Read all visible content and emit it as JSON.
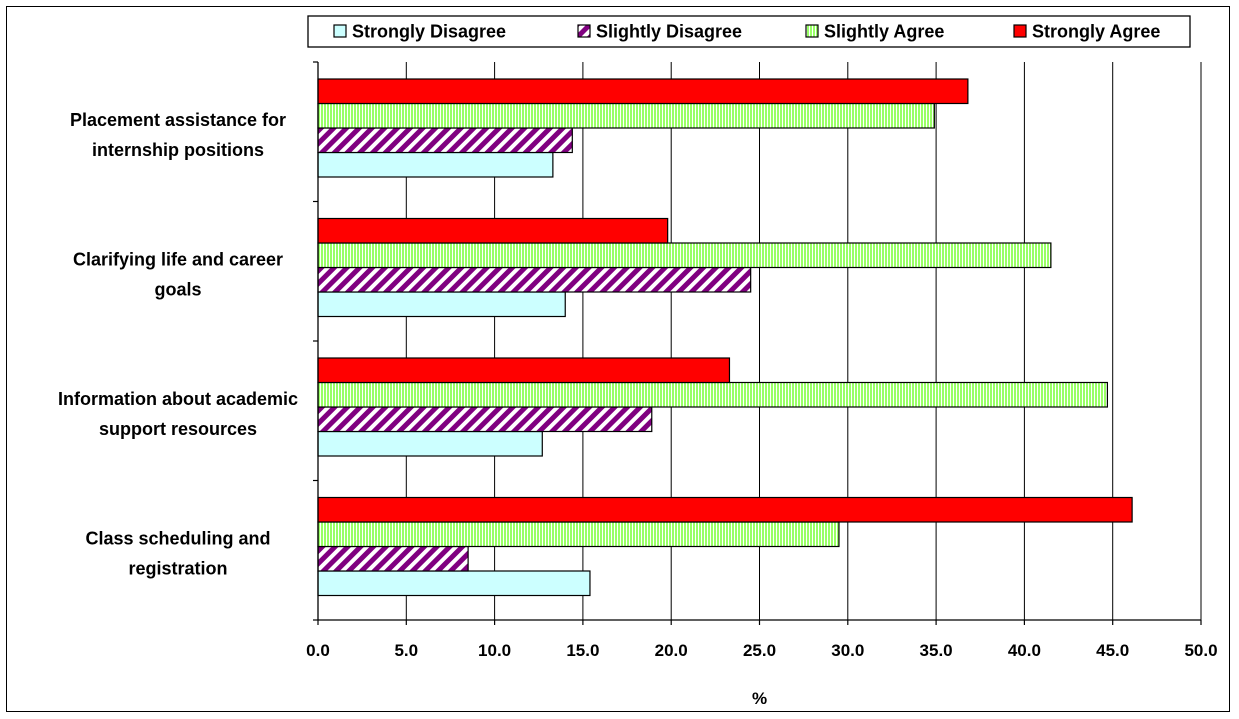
{
  "chart_data": {
    "type": "bar",
    "orientation": "horizontal",
    "categories": [
      [
        "Placement assistance for",
        "internship positions"
      ],
      [
        "Clarifying life and career",
        "goals"
      ],
      [
        "Information about academic",
        "support resources"
      ],
      [
        "Class scheduling and",
        "registration"
      ]
    ],
    "series": [
      {
        "name": "Strongly Disagree",
        "values": [
          13.3,
          14.0,
          12.7,
          15.4
        ],
        "color": "#ccffff",
        "pattern": "solid"
      },
      {
        "name": "Slightly Disagree",
        "values": [
          14.4,
          24.5,
          18.9,
          8.5
        ],
        "color": "#800080",
        "pattern": "diagonal-stripes"
      },
      {
        "name": "Slightly Agree",
        "values": [
          34.9,
          41.5,
          44.7,
          29.5
        ],
        "color": "#99ff66",
        "pattern": "vertical-stripes"
      },
      {
        "name": "Strongly Agree",
        "values": [
          36.8,
          19.8,
          23.3,
          46.1
        ],
        "color": "#ff0000",
        "pattern": "solid"
      }
    ],
    "xlabel": "%",
    "xlim": [
      0,
      50
    ],
    "xticks": [
      "0.0",
      "5.0",
      "10.0",
      "15.0",
      "20.0",
      "25.0",
      "30.0",
      "35.0",
      "40.0",
      "45.0",
      "50.0"
    ],
    "grid": "vertical",
    "legend_position": "top"
  }
}
